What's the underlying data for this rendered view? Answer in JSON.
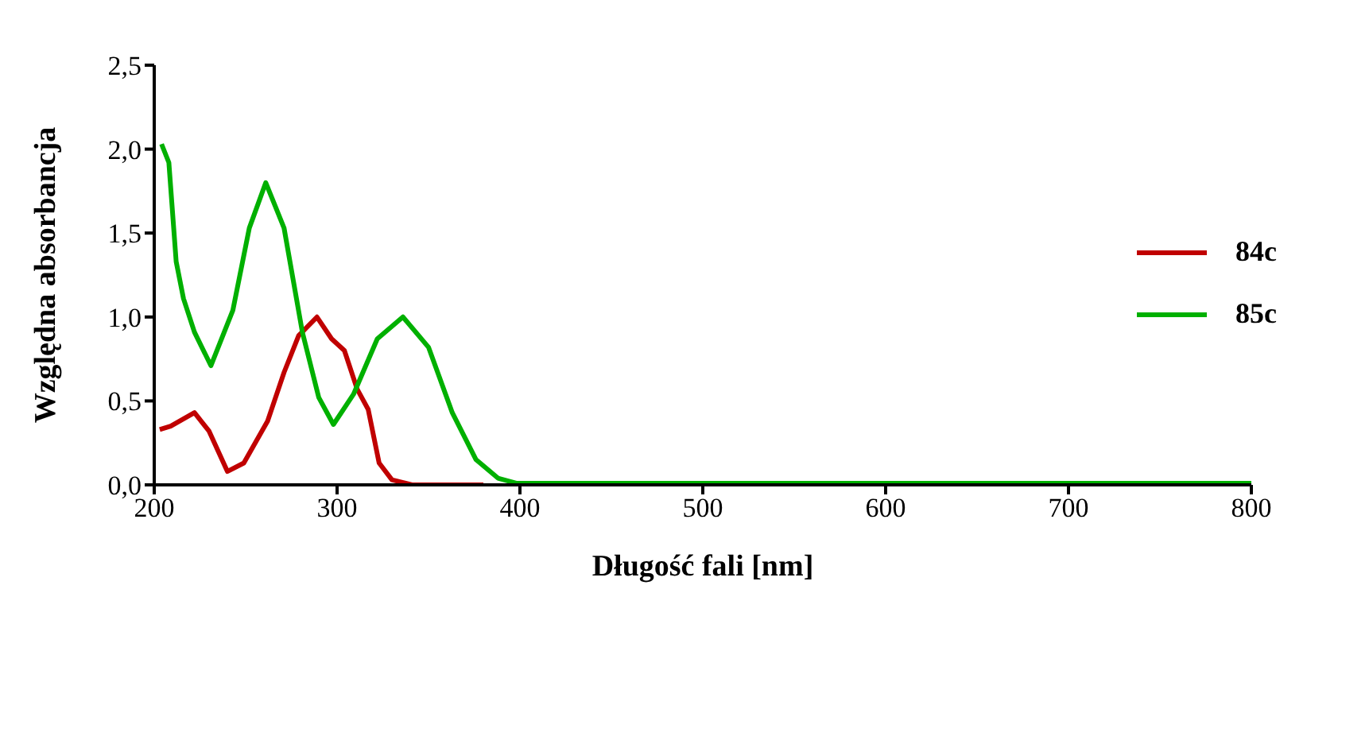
{
  "chart_data": {
    "type": "line",
    "xlabel": "Długość fali [nm]",
    "ylabel": "Względna absorbancja",
    "xlim": [
      200,
      800
    ],
    "xticks": [
      200,
      300,
      400,
      500,
      600,
      700,
      800
    ],
    "ylim": [
      0,
      2.5
    ],
    "yticks": [
      {
        "value": 0,
        "label": "0,0"
      },
      {
        "value": 0.5,
        "label": "0,5"
      },
      {
        "value": 1,
        "label": "1,0"
      },
      {
        "value": 1.5,
        "label": "1,5"
      },
      {
        "value": 2,
        "label": "2,0"
      },
      {
        "value": 2.5,
        "label": "2,5"
      }
    ],
    "legend": "right",
    "grid": false,
    "marker": "none",
    "line_style": "solid",
    "series": [
      {
        "name": "84c",
        "color": "#c00000",
        "x": [
          203,
          209,
          222,
          230,
          240,
          249,
          262,
          271,
          279,
          289,
          297,
          304,
          311,
          317,
          323,
          330,
          341,
          380
        ],
        "values": [
          0.33,
          0.35,
          0.43,
          0.32,
          0.08,
          0.13,
          0.38,
          0.67,
          0.89,
          1.0,
          0.87,
          0.8,
          0.57,
          0.45,
          0.13,
          0.03,
          0.0,
          0.0
        ]
      },
      {
        "name": "85c",
        "color": "#00b000",
        "x": [
          204,
          208,
          212,
          216,
          222,
          231,
          243,
          252,
          261,
          271,
          281,
          290,
          298,
          309,
          322,
          336,
          350,
          363,
          376,
          388,
          398,
          500,
          600,
          700,
          800
        ],
        "values": [
          2.03,
          1.92,
          1.33,
          1.11,
          0.91,
          0.71,
          1.04,
          1.53,
          1.8,
          1.53,
          0.91,
          0.52,
          0.36,
          0.54,
          0.87,
          1.0,
          0.82,
          0.43,
          0.15,
          0.04,
          0.01,
          0.01,
          0.01,
          0.01,
          0.01
        ]
      }
    ]
  }
}
